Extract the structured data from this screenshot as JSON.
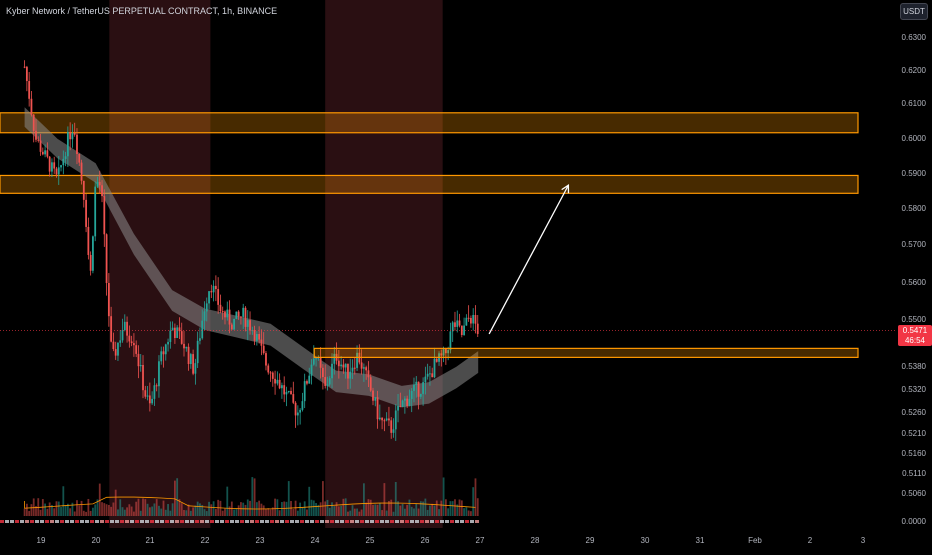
{
  "header": {
    "title": "Kyber Network / TetherUS PERPETUAL CONTRACT, 1h, BINANCE",
    "currency_button": "USDT"
  },
  "colors": {
    "background": "#000000",
    "up_candle": "#26a69a",
    "down_candle": "#ef5350",
    "zone": "#ff9800",
    "session_shade": "#2a0f12",
    "band": "#8a8a8a",
    "axis_text": "#b2b5be",
    "price_badge": "#f23645",
    "arrow": "#ffffff"
  },
  "chart_data": {
    "type": "candlestick",
    "title": "Kyber Network / TetherUS PERPETUAL CONTRACT, 1h, BINANCE",
    "y_ticks": [
      "0.6300",
      "0.6200",
      "0.6100",
      "0.6000",
      "0.5900",
      "0.5800",
      "0.5700",
      "0.5600",
      "0.5500",
      "0.5380",
      "0.5320",
      "0.5260",
      "0.5210",
      "0.5160",
      "0.5110",
      "0.5060",
      "0.0000"
    ],
    "x_ticks": [
      "19",
      "20",
      "21",
      "22",
      "23",
      "24",
      "25",
      "26",
      "27",
      "28",
      "29",
      "30",
      "31",
      "Feb",
      "2",
      "3"
    ],
    "current_price": "0.5471",
    "countdown": "46:54",
    "close_path": [
      [
        18.7,
        0.621
      ],
      [
        18.9,
        0.6
      ],
      [
        19.1,
        0.594
      ],
      [
        19.3,
        0.588
      ],
      [
        19.5,
        0.6
      ],
      [
        19.6,
        0.604
      ],
      [
        19.8,
        0.582
      ],
      [
        19.9,
        0.56
      ],
      [
        20.0,
        0.588
      ],
      [
        20.1,
        0.586
      ],
      [
        20.2,
        0.56
      ],
      [
        20.3,
        0.539
      ],
      [
        20.5,
        0.548
      ],
      [
        20.7,
        0.545
      ],
      [
        20.9,
        0.531
      ],
      [
        21.0,
        0.527
      ],
      [
        21.2,
        0.54
      ],
      [
        21.4,
        0.548
      ],
      [
        21.6,
        0.544
      ],
      [
        21.8,
        0.537
      ],
      [
        22.0,
        0.554
      ],
      [
        22.1,
        0.56
      ],
      [
        22.3,
        0.552
      ],
      [
        22.5,
        0.549
      ],
      [
        22.7,
        0.551
      ],
      [
        22.9,
        0.547
      ],
      [
        23.1,
        0.539
      ],
      [
        23.3,
        0.535
      ],
      [
        23.5,
        0.53
      ],
      [
        23.7,
        0.526
      ],
      [
        23.9,
        0.536
      ],
      [
        24.0,
        0.542
      ],
      [
        24.2,
        0.532
      ],
      [
        24.4,
        0.541
      ],
      [
        24.6,
        0.536
      ],
      [
        24.8,
        0.541
      ],
      [
        25.0,
        0.533
      ],
      [
        25.2,
        0.524
      ],
      [
        25.4,
        0.522
      ],
      [
        25.6,
        0.528
      ],
      [
        25.8,
        0.531
      ],
      [
        26.0,
        0.533
      ],
      [
        26.2,
        0.538
      ],
      [
        26.4,
        0.541
      ],
      [
        26.55,
        0.549
      ],
      [
        26.7,
        0.546
      ],
      [
        26.85,
        0.551
      ],
      [
        27.0,
        0.5471
      ]
    ],
    "ema_band": {
      "x": [
        18.7,
        19.3,
        20.0,
        20.7,
        21.4,
        22.0,
        22.6,
        23.2,
        23.8,
        24.4,
        25.0,
        25.6,
        26.1,
        26.6,
        27.0
      ],
      "center": [
        0.606,
        0.597,
        0.59,
        0.57,
        0.555,
        0.55,
        0.548,
        0.546,
        0.54,
        0.534,
        0.533,
        0.53,
        0.531,
        0.535,
        0.539
      ],
      "half_width": 0.0028
    },
    "resistance_zones": [
      {
        "from": 0.6015,
        "to": 0.6072
      },
      {
        "from": 0.5842,
        "to": 0.5893
      }
    ],
    "support_zone": {
      "from": 0.5402,
      "to": 0.5425,
      "start_x": 24.0
    },
    "session_shades": [
      [
        20.25,
        22.1
      ],
      [
        24.2,
        26.35
      ]
    ],
    "projection_arrow": {
      "from": [
        27.2,
        0.5462
      ],
      "to": [
        28.65,
        0.5865
      ]
    },
    "x_range": [
      18.6,
      31.5
    ],
    "volume_top_axis": "0.5060"
  }
}
